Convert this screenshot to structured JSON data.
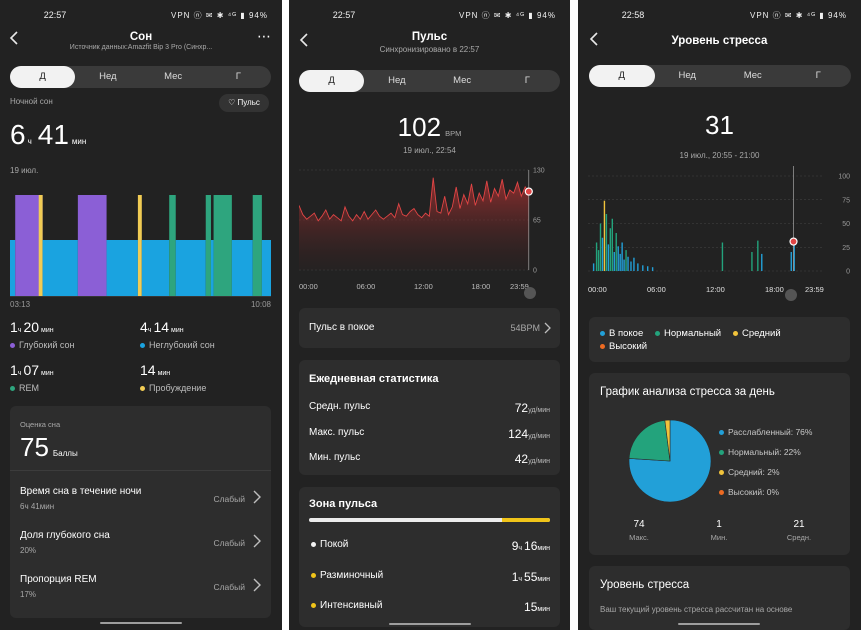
{
  "colors": {
    "deep": "#8b5fd6",
    "light": "#1aa3e0",
    "rem": "#2ea57e",
    "awake": "#f1cc54",
    "hr": "#d53b3b",
    "stress_low": "#22a0d8",
    "stress_norm": "#23a37c",
    "stress_mid": "#f1c33b",
    "stress_high": "#ee6b22"
  },
  "sleep": {
    "status_time": "22:57",
    "status_icons": "VPN ⓝ ✉ ✱ ⁴ᴳ ▮ 94%",
    "title": "Сон",
    "source": "Источник данных:Amazfit Bip 3 Pro (Синхр...",
    "more": "⋯",
    "tabs": [
      "Д",
      "Нед",
      "Мес",
      "Г"
    ],
    "night_label": "Ночной сон",
    "pulse_btn": "Пульс",
    "dur_h": "6",
    "unit_h": "ч",
    "dur_m": "41",
    "unit_m": "мин",
    "date": "19 июл.",
    "t_start": "03:13",
    "t_end": "10:08",
    "deep_h": "1",
    "deep_m": "20",
    "deep_label": "Глубокий сон",
    "light_h": "4",
    "light_m": "14",
    "light_label": "Неглубокий сон",
    "rem_h": "1",
    "rem_m": "07",
    "rem_label": "REM",
    "awake_m": "14",
    "awake_label": "Пробуждение",
    "score_label": "Оценка сна",
    "score": "75",
    "score_unit": "Баллы",
    "rows": [
      {
        "title": "Время сна в течение ночи",
        "value": "6ч 41мин",
        "rating": "Слабый"
      },
      {
        "title": "Доля глубокого сна",
        "value": "20%",
        "rating": "Слабый"
      },
      {
        "title": "Пропорция REM",
        "value": "17%",
        "rating": "Слабый"
      }
    ]
  },
  "pulse": {
    "status_time": "22:57",
    "status_icons": "VPN ⓝ ✉ ✱ ⁴ᴳ ▮ 94%",
    "title": "Пульс",
    "sync": "Синхронизировано в 22:57",
    "tabs": [
      "Д",
      "Нед",
      "Мес",
      "Г"
    ],
    "value": "102",
    "unit": "BPM",
    "date": "19 июл., 22:54",
    "rest_label": "Пульс в покое",
    "rest_value": "54BPM",
    "daily_title": "Ежедневная статистика",
    "avg_label": "Средн. пульс",
    "avg_value": "72",
    "avg_unit": "уд/мин",
    "max_label": "Макс. пульс",
    "max_value": "124",
    "max_unit": "уд/мин",
    "min_label": "Мин. пульс",
    "min_value": "42",
    "min_unit": "уд/мин",
    "zone_title": "Зона пульса",
    "zones": [
      {
        "label": "Покой",
        "h": "9",
        "uh": "ч",
        "m": "16",
        "um": "мин"
      },
      {
        "label": "Разминочный",
        "h": "1",
        "uh": "ч",
        "m": "55",
        "um": "мин"
      },
      {
        "label": "Интенсивный",
        "h": "",
        "uh": "",
        "m": "15",
        "um": "мин"
      }
    ]
  },
  "stress": {
    "status_time": "22:58",
    "status_icons": "VPN ⓝ ✉ ✱ ⁴ᴳ ▮ 94%",
    "title": "Уровень стресса",
    "tabs": [
      "Д",
      "Нед",
      "Мес",
      "Г"
    ],
    "value": "31",
    "date": "19 июл., 20:55 - 21:00",
    "legend": [
      {
        "label": "В покое"
      },
      {
        "label": "Нормальный"
      },
      {
        "label": "Средний"
      },
      {
        "label": "Высокий"
      }
    ],
    "analysis_title": "График анализа стресса за день",
    "pie_legend": [
      "Расслабленный: 76%",
      "Нормальный: 22%",
      "Средний: 2%",
      "Высокий: 0%"
    ],
    "max_value": "74",
    "max_label": "Макс.",
    "min_value": "1",
    "min_label": "Мин.",
    "avg_value": "21",
    "avg_label": "Средн.",
    "level_title": "Уровень стресса",
    "level_text": "Ваш текущий уровень стресса рассчитан на основе"
  },
  "chart_data": [
    {
      "type": "bar",
      "title": "Сон",
      "x_start": "03:13",
      "x_end": "10:08",
      "stages_order": [
        "deep",
        "light",
        "rem",
        "awake"
      ],
      "segments": [
        {
          "stage": "light",
          "from": 0.0,
          "to": 0.02
        },
        {
          "stage": "deep",
          "from": 0.02,
          "to": 0.125
        },
        {
          "stage": "awake",
          "from": 0.11,
          "to": 0.125
        },
        {
          "stage": "light",
          "from": 0.125,
          "to": 0.26
        },
        {
          "stage": "deep",
          "from": 0.26,
          "to": 0.37
        },
        {
          "stage": "light",
          "from": 0.37,
          "to": 0.49
        },
        {
          "stage": "awake",
          "from": 0.49,
          "to": 0.505
        },
        {
          "stage": "light",
          "from": 0.505,
          "to": 0.61
        },
        {
          "stage": "rem",
          "from": 0.61,
          "to": 0.635
        },
        {
          "stage": "light",
          "from": 0.635,
          "to": 0.75
        },
        {
          "stage": "rem",
          "from": 0.75,
          "to": 0.77
        },
        {
          "stage": "light",
          "from": 0.77,
          "to": 0.78
        },
        {
          "stage": "rem",
          "from": 0.78,
          "to": 0.85
        },
        {
          "stage": "light",
          "from": 0.85,
          "to": 0.93
        },
        {
          "stage": "rem",
          "from": 0.93,
          "to": 0.965
        },
        {
          "stage": "light",
          "from": 0.965,
          "to": 1.0
        }
      ]
    },
    {
      "type": "line",
      "title": "Пульс",
      "x_ticks": [
        "00:00",
        "06:00",
        "12:00",
        "18:00",
        "23:59"
      ],
      "y_ticks": [
        0,
        65,
        130
      ],
      "ylim": [
        0,
        130
      ],
      "x_hours": [
        0.0,
        0.4,
        0.8,
        1.2,
        1.6,
        2.0,
        2.4,
        2.8,
        3.2,
        3.6,
        4.0,
        4.4,
        4.8,
        5.2,
        5.6,
        6.0,
        6.4,
        6.8,
        7.2,
        7.6,
        8.0,
        8.4,
        8.8,
        9.2,
        9.6,
        10.0,
        10.4,
        10.8,
        11.2,
        11.6,
        12.0,
        12.4,
        12.8,
        13.2,
        13.6,
        14.0,
        14.4,
        14.8,
        15.2,
        15.6,
        16.0,
        16.4,
        16.8,
        17.2,
        17.6,
        18.0,
        18.4,
        18.8,
        19.2,
        19.6,
        20.0,
        20.4,
        20.8,
        21.2,
        21.6,
        22.0,
        22.4,
        22.8,
        23.2,
        23.6,
        23.98
      ],
      "y_values": [
        84,
        72,
        66,
        70,
        74,
        64,
        70,
        78,
        66,
        72,
        68,
        64,
        82,
        70,
        64,
        72,
        66,
        76,
        66,
        72,
        78,
        70,
        66,
        70,
        74,
        68,
        86,
        72,
        70,
        76,
        80,
        72,
        68,
        74,
        70,
        120,
        76,
        74,
        96,
        72,
        82,
        108,
        80,
        98,
        86,
        112,
        84,
        100,
        90,
        116,
        88,
        106,
        96,
        118,
        92,
        104,
        100,
        114,
        96,
        108,
        102
      ]
    },
    {
      "type": "bar",
      "title": "Уровень стресса",
      "x_ticks": [
        "00:00",
        "06:00",
        "12:00",
        "18:00",
        "23:59"
      ],
      "y_ticks": [
        0,
        25,
        50,
        75,
        100
      ],
      "ylim": [
        0,
        100
      ],
      "x_hours": [
        0.5,
        0.8,
        1.0,
        1.2,
        1.4,
        1.6,
        1.8,
        2.0,
        2.2,
        2.4,
        2.6,
        2.8,
        3.0,
        3.2,
        3.4,
        3.6,
        3.8,
        4.0,
        4.3,
        4.6,
        5.0,
        5.5,
        6.0,
        6.5,
        13.6,
        16.6,
        17.2,
        17.6,
        20.6,
        20.9
      ],
      "values": [
        8,
        30,
        22,
        50,
        35,
        74,
        60,
        28,
        45,
        55,
        20,
        40,
        26,
        18,
        30,
        12,
        22,
        15,
        10,
        14,
        8,
        6,
        5,
        4,
        30,
        20,
        32,
        18,
        20,
        31
      ],
      "categories_stage": [
        "low",
        "norm",
        "norm",
        "norm",
        "low",
        "mid",
        "norm",
        "low",
        "norm",
        "norm",
        "low",
        "norm",
        "low",
        "low",
        "low",
        "low",
        "norm",
        "low",
        "low",
        "low",
        "low",
        "low",
        "low",
        "low",
        "norm",
        "norm",
        "norm",
        "low",
        "low",
        "low"
      ]
    },
    {
      "type": "pie",
      "title": "График анализа стресса за день",
      "labels": [
        "Расслабленный",
        "Нормальный",
        "Средний",
        "Высокий"
      ],
      "values": [
        76,
        22,
        2,
        0
      ]
    }
  ]
}
